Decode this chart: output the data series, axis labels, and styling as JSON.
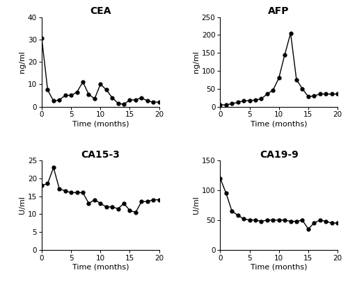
{
  "CEA": {
    "title": "CEA",
    "ylabel": "ng/ml",
    "xlabel": "Time (months)",
    "ylim": [
      0,
      40
    ],
    "yticks": [
      0,
      10,
      20,
      30,
      40
    ],
    "xlim": [
      0,
      20
    ],
    "xticks": [
      0,
      5,
      10,
      15,
      20
    ],
    "x": [
      0,
      1,
      2,
      3,
      4,
      5,
      6,
      7,
      8,
      9,
      10,
      11,
      12,
      13,
      14,
      15,
      16,
      17,
      18,
      19,
      20
    ],
    "y": [
      30.5,
      7.5,
      2.5,
      3.0,
      5.0,
      5.0,
      6.5,
      11.0,
      5.5,
      3.5,
      10.0,
      7.5,
      4.0,
      1.5,
      1.0,
      3.0,
      3.0,
      4.0,
      2.5,
      2.0,
      2.0
    ]
  },
  "AFP": {
    "title": "AFP",
    "ylabel": "ng/ml",
    "xlabel": "Time (months)",
    "ylim": [
      0,
      250
    ],
    "yticks": [
      0,
      50,
      100,
      150,
      200,
      250
    ],
    "xlim": [
      0,
      20
    ],
    "xticks": [
      0,
      5,
      10,
      15,
      20
    ],
    "x": [
      0,
      1,
      2,
      3,
      4,
      5,
      6,
      7,
      8,
      9,
      10,
      11,
      12,
      13,
      14,
      15,
      16,
      17,
      18,
      19,
      20
    ],
    "y": [
      5,
      5,
      8,
      12,
      16,
      17,
      18,
      22,
      35,
      46,
      80,
      145,
      205,
      75,
      50,
      28,
      30,
      35,
      35,
      35,
      35
    ]
  },
  "CA15_3": {
    "title": "CA15-3",
    "ylabel": "U/ml",
    "xlabel": "Time (months)",
    "ylim": [
      0,
      25
    ],
    "yticks": [
      0,
      5,
      10,
      15,
      20,
      25
    ],
    "xlim": [
      0,
      20
    ],
    "xticks": [
      0,
      5,
      10,
      15,
      20
    ],
    "x": [
      0,
      1,
      2,
      3,
      4,
      5,
      6,
      7,
      8,
      9,
      10,
      11,
      12,
      13,
      14,
      15,
      16,
      17,
      18,
      19,
      20
    ],
    "y": [
      18,
      18.5,
      23,
      17,
      16.5,
      16,
      16,
      16,
      13,
      14,
      13,
      12,
      12,
      11.5,
      13,
      11,
      10.5,
      13.5,
      13.5,
      14,
      14
    ]
  },
  "CA19_9": {
    "title": "CA19-9",
    "ylabel": "U/ml",
    "xlabel": "Time (months)",
    "ylim": [
      0,
      150
    ],
    "yticks": [
      0,
      50,
      100,
      150
    ],
    "xlim": [
      0,
      20
    ],
    "xticks": [
      0,
      5,
      10,
      15,
      20
    ],
    "x": [
      0,
      1,
      2,
      3,
      4,
      5,
      6,
      7,
      8,
      9,
      10,
      11,
      12,
      13,
      14,
      15,
      16,
      17,
      18,
      19,
      20
    ],
    "y": [
      120,
      95,
      65,
      58,
      52,
      50,
      50,
      48,
      50,
      50,
      50,
      50,
      48,
      48,
      50,
      35,
      45,
      50,
      48,
      45,
      45
    ]
  },
  "line_color": "#000000",
  "marker": "o",
  "markersize": 3.5,
  "linewidth": 1.0,
  "title_fontsize": 10,
  "label_fontsize": 8,
  "tick_fontsize": 7.5
}
